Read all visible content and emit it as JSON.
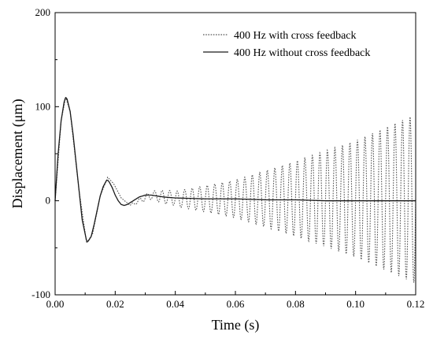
{
  "chart_data": {
    "type": "line",
    "title": "",
    "xlabel": "Time (s)",
    "ylabel": "Displacement (μm)",
    "xlim": [
      0.0,
      0.12
    ],
    "ylim": [
      -100,
      200
    ],
    "x_ticks": [
      0.0,
      0.02,
      0.04,
      0.06,
      0.08,
      0.1,
      0.12
    ],
    "x_tick_labels": [
      "0.00",
      "0.02",
      "0.04",
      "0.06",
      "0.08",
      "0.10",
      "0.12"
    ],
    "y_ticks": [
      -100,
      0,
      100,
      200
    ],
    "y_tick_labels": [
      "-100",
      "0",
      "100",
      "200"
    ],
    "grid": false,
    "legend_position": "top-right",
    "series": [
      {
        "name": "400 Hz with cross feedback",
        "line_style": "dotted",
        "color": "#555555",
        "transient": {
          "x": [
            0.0,
            0.002,
            0.0035,
            0.005,
            0.008,
            0.0105,
            0.0125,
            0.015,
            0.0175,
            0.0195,
            0.022,
            0.025,
            0.028,
            0.032,
            0.036,
            0.04
          ],
          "y": [
            0,
            85,
            110,
            95,
            10,
            -45,
            -35,
            5,
            25,
            18,
            3,
            -5,
            0,
            6,
            4,
            3
          ]
        },
        "oscillation": {
          "frequency_hz": 400,
          "envelope_x": [
            0.025,
            0.04,
            0.06,
            0.08,
            0.1,
            0.12
          ],
          "envelope_amplitude": [
            4,
            8,
            20,
            40,
            62,
            90
          ],
          "baseline": 2
        }
      },
      {
        "name": "400 Hz without cross feedback",
        "line_style": "solid",
        "color": "#1a1a1a",
        "x": [
          0.0,
          0.001,
          0.002,
          0.003,
          0.0035,
          0.004,
          0.005,
          0.006,
          0.007,
          0.008,
          0.009,
          0.0105,
          0.011,
          0.012,
          0.013,
          0.014,
          0.015,
          0.016,
          0.017,
          0.0175,
          0.018,
          0.019,
          0.02,
          0.021,
          0.022,
          0.023,
          0.024,
          0.025,
          0.026,
          0.027,
          0.028,
          0.03,
          0.032,
          0.034,
          0.036,
          0.04,
          0.05,
          0.06,
          0.07,
          0.08,
          0.09,
          0.1,
          0.11,
          0.12
        ],
        "y": [
          0,
          50,
          85,
          105,
          110,
          108,
          95,
          70,
          40,
          10,
          -20,
          -43,
          -43,
          -38,
          -25,
          -10,
          5,
          15,
          21,
          22,
          20,
          14,
          6,
          0,
          -4,
          -5,
          -4,
          -2,
          0,
          2,
          4,
          6,
          6,
          5,
          4,
          3,
          2,
          2,
          1,
          1,
          0,
          0,
          0,
          0
        ]
      }
    ]
  }
}
